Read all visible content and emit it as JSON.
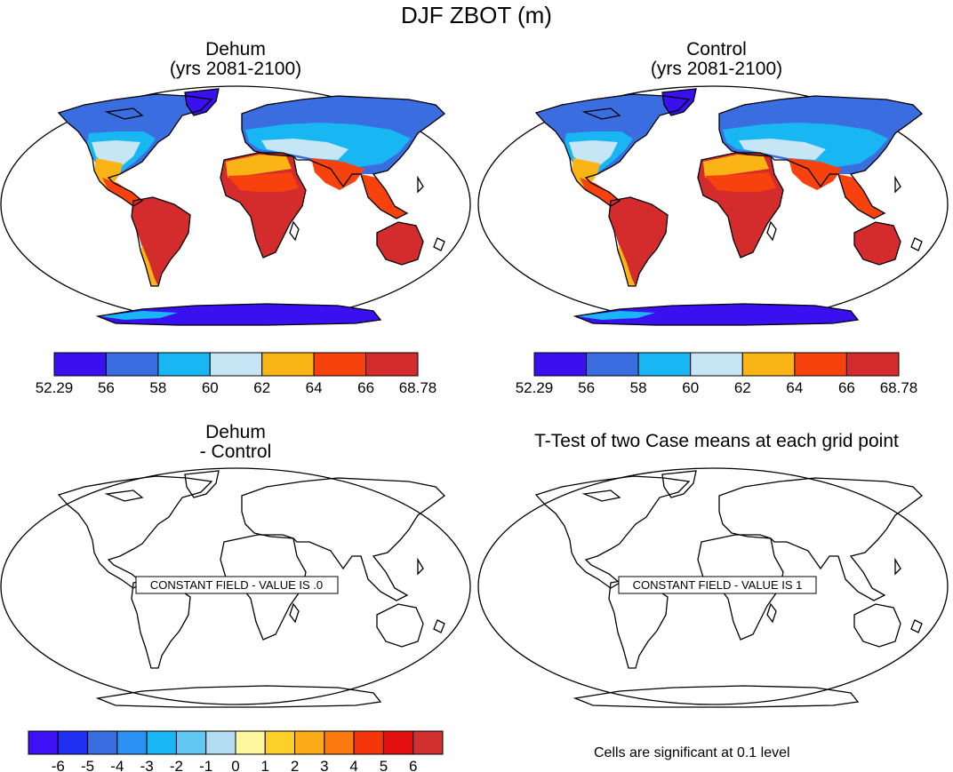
{
  "title": "DJF ZBOT (m)",
  "panels": [
    {
      "title_line1": "Dehum",
      "title_line2": "(yrs 2081-2100)"
    },
    {
      "title_line1": "Control",
      "title_line2": "(yrs 2081-2100)"
    },
    {
      "title_line1": "Dehum",
      "title_line2": "- Control",
      "field_label": "CONSTANT FIELD - VALUE IS .0"
    },
    {
      "title_line1": "T-Test of two Case means at each grid point",
      "title_line2": "",
      "field_label": "CONSTANT FIELD - VALUE IS 1"
    }
  ],
  "colorbar_top": {
    "labels": [
      "52.29",
      "56",
      "58",
      "60",
      "62",
      "64",
      "66",
      "68.78"
    ],
    "colors": [
      "#3a10f0",
      "#3a6ee0",
      "#18b6f2",
      "#c6e6f6",
      "#fbb416",
      "#f7420e",
      "#d42c2c"
    ]
  },
  "colorbar_bottom": {
    "labels": [
      "-6",
      "-5",
      "-4",
      "-3",
      "-2",
      "-1",
      "0",
      "1",
      "2",
      "3",
      "4",
      "5",
      "6"
    ],
    "colors": [
      "#3d10f5",
      "#1f2ff0",
      "#3a6ee0",
      "#2b92f4",
      "#18b6f2",
      "#62c8f2",
      "#b4ddf4",
      "#fff6a0",
      "#fcd02a",
      "#fbac18",
      "#fa7a10",
      "#f4360a",
      "#e21010",
      "#d22f2f"
    ]
  },
  "footnote": "Cells are significant at 0.1 level"
}
